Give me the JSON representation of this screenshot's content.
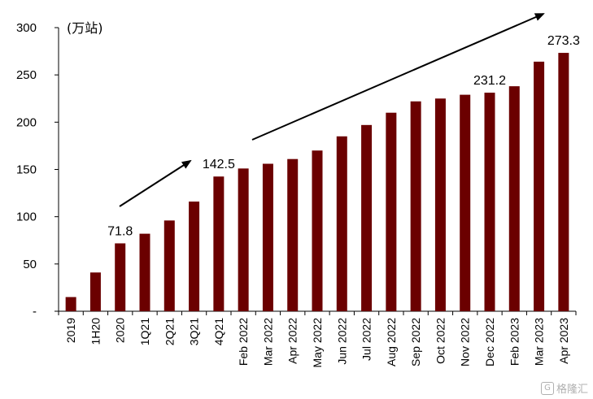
{
  "chart_data": {
    "type": "bar",
    "unit_label": "(万站)",
    "categories": [
      "2019",
      "1H20",
      "2020",
      "1Q21",
      "2Q21",
      "3Q21",
      "4Q21",
      "Feb 2022",
      "Mar 2022",
      "Apr 2022",
      "May 2022",
      "Jun 2022",
      "Jul 2022",
      "Aug 2022",
      "Sep 2022",
      "Oct 2022",
      "Nov 2022",
      "Dec 2022",
      "Feb 2023",
      "Mar 2023",
      "Apr 2023"
    ],
    "values": [
      15,
      41,
      71.8,
      82,
      96,
      116,
      142.5,
      151,
      156,
      161,
      170,
      185,
      197,
      210,
      222,
      225,
      229,
      231.2,
      238,
      264,
      273.3
    ],
    "data_labels": [
      {
        "index": 2,
        "text": "71.8"
      },
      {
        "index": 6,
        "text": "142.5"
      },
      {
        "index": 17,
        "text": "231.2"
      },
      {
        "index": 20,
        "text": "273.3"
      }
    ],
    "y_ticks": [
      {
        "value": 0,
        "label": "-"
      },
      {
        "value": 50,
        "label": "50"
      },
      {
        "value": 100,
        "label": "100"
      },
      {
        "value": 150,
        "label": "150"
      },
      {
        "value": 200,
        "label": "200"
      },
      {
        "value": 250,
        "label": "250"
      },
      {
        "value": 300,
        "label": "300"
      }
    ],
    "ylim": [
      0,
      300
    ],
    "bar_color": "#6b0000",
    "grid": false,
    "legend": "none"
  },
  "watermark": {
    "logo": "G",
    "text": "格隆汇"
  }
}
